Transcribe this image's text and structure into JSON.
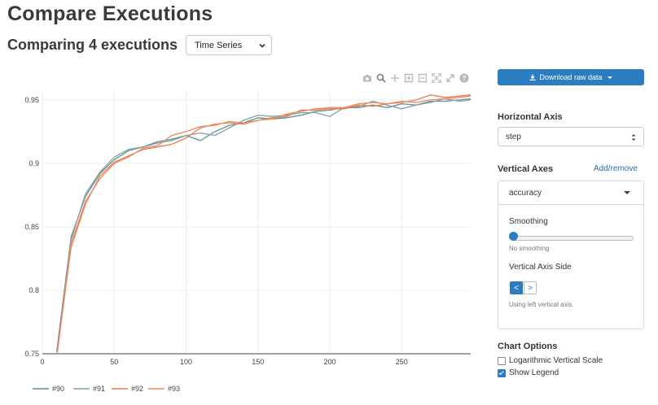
{
  "page_title": "Compare Executions",
  "subtitle": "Comparing 4 executions",
  "view_select": {
    "value": "Time Series"
  },
  "modebar": {
    "icons": [
      "camera-icon",
      "zoom-icon",
      "pan-icon",
      "zoom-in-icon",
      "zoom-out-icon",
      "autoscale-icon",
      "reset-axes-icon",
      "help-icon"
    ]
  },
  "download_button": {
    "label": "Download raw data"
  },
  "horizontal_axis": {
    "heading": "Horizontal Axis",
    "value": "step"
  },
  "vertical_axes": {
    "heading": "Vertical Axes",
    "add_remove": "Add/remove",
    "selected": "accuracy",
    "smoothing_label": "Smoothing",
    "smoothing_hint": "No smoothing",
    "smoothing_value": 0,
    "side_label": "Vertical Axis Side",
    "side_left": "<",
    "side_right": ">",
    "side_hint": "Using left vertical axis."
  },
  "chart_options": {
    "heading": "Chart Options",
    "log_scale_label": "Logarithmic Vertical Scale",
    "log_scale_checked": false,
    "show_legend_label": "Show Legend",
    "show_legend_checked": true
  },
  "colors": {
    "accent": "#2c7cc2",
    "series_90": "#5f8f96",
    "series_91": "#7fa3a7",
    "series_92": "#ef7c4e",
    "series_93": "#e98a63"
  },
  "chart_data": {
    "type": "line",
    "x_ticks": [
      0,
      50,
      100,
      150,
      200,
      250
    ],
    "y_ticks": [
      "0.75",
      "0.8",
      "0.85",
      "0.9",
      "0.95"
    ],
    "xlim": [
      0,
      298
    ],
    "ylim": [
      0.75,
      0.957
    ],
    "grid": true,
    "legend_position": "bottom",
    "x": [
      10,
      20,
      30,
      40,
      50,
      60,
      70,
      80,
      90,
      100,
      110,
      120,
      130,
      140,
      150,
      160,
      170,
      180,
      190,
      200,
      210,
      220,
      230,
      240,
      250,
      260,
      270,
      280,
      290,
      298
    ],
    "series": [
      {
        "name": "#90",
        "color": "#5f8f96",
        "values": [
          0.752,
          0.842,
          0.874,
          0.892,
          0.903,
          0.91,
          0.913,
          0.917,
          0.919,
          0.922,
          0.918,
          0.925,
          0.93,
          0.932,
          0.936,
          0.935,
          0.936,
          0.938,
          0.941,
          0.942,
          0.944,
          0.944,
          0.946,
          0.944,
          0.947,
          0.946,
          0.949,
          0.949,
          0.95,
          0.951
        ]
      },
      {
        "name": "#91",
        "color": "#7fa3a7",
        "values": [
          0.749,
          0.84,
          0.876,
          0.893,
          0.905,
          0.911,
          0.913,
          0.916,
          0.918,
          0.922,
          0.924,
          0.922,
          0.928,
          0.934,
          0.938,
          0.937,
          0.938,
          0.94,
          0.94,
          0.937,
          0.944,
          0.945,
          0.949,
          0.946,
          0.943,
          0.946,
          0.948,
          0.951,
          0.949,
          0.95
        ]
      },
      {
        "name": "#92",
        "color": "#ef7c4e",
        "values": [
          0.748,
          0.834,
          0.868,
          0.89,
          0.901,
          0.906,
          0.911,
          0.913,
          0.915,
          0.92,
          0.928,
          0.931,
          0.932,
          0.931,
          0.934,
          0.936,
          0.937,
          0.942,
          0.942,
          0.943,
          0.943,
          0.946,
          0.945,
          0.947,
          0.948,
          0.95,
          0.954,
          0.952,
          0.953,
          0.954
        ]
      },
      {
        "name": "#93",
        "color": "#e98a63",
        "values": [
          0.747,
          0.837,
          0.87,
          0.888,
          0.9,
          0.905,
          0.912,
          0.914,
          0.922,
          0.925,
          0.929,
          0.93,
          0.933,
          0.932,
          0.934,
          0.935,
          0.939,
          0.941,
          0.943,
          0.944,
          0.944,
          0.947,
          0.948,
          0.947,
          0.949,
          0.948,
          0.95,
          0.951,
          0.952,
          0.953
        ]
      }
    ]
  }
}
